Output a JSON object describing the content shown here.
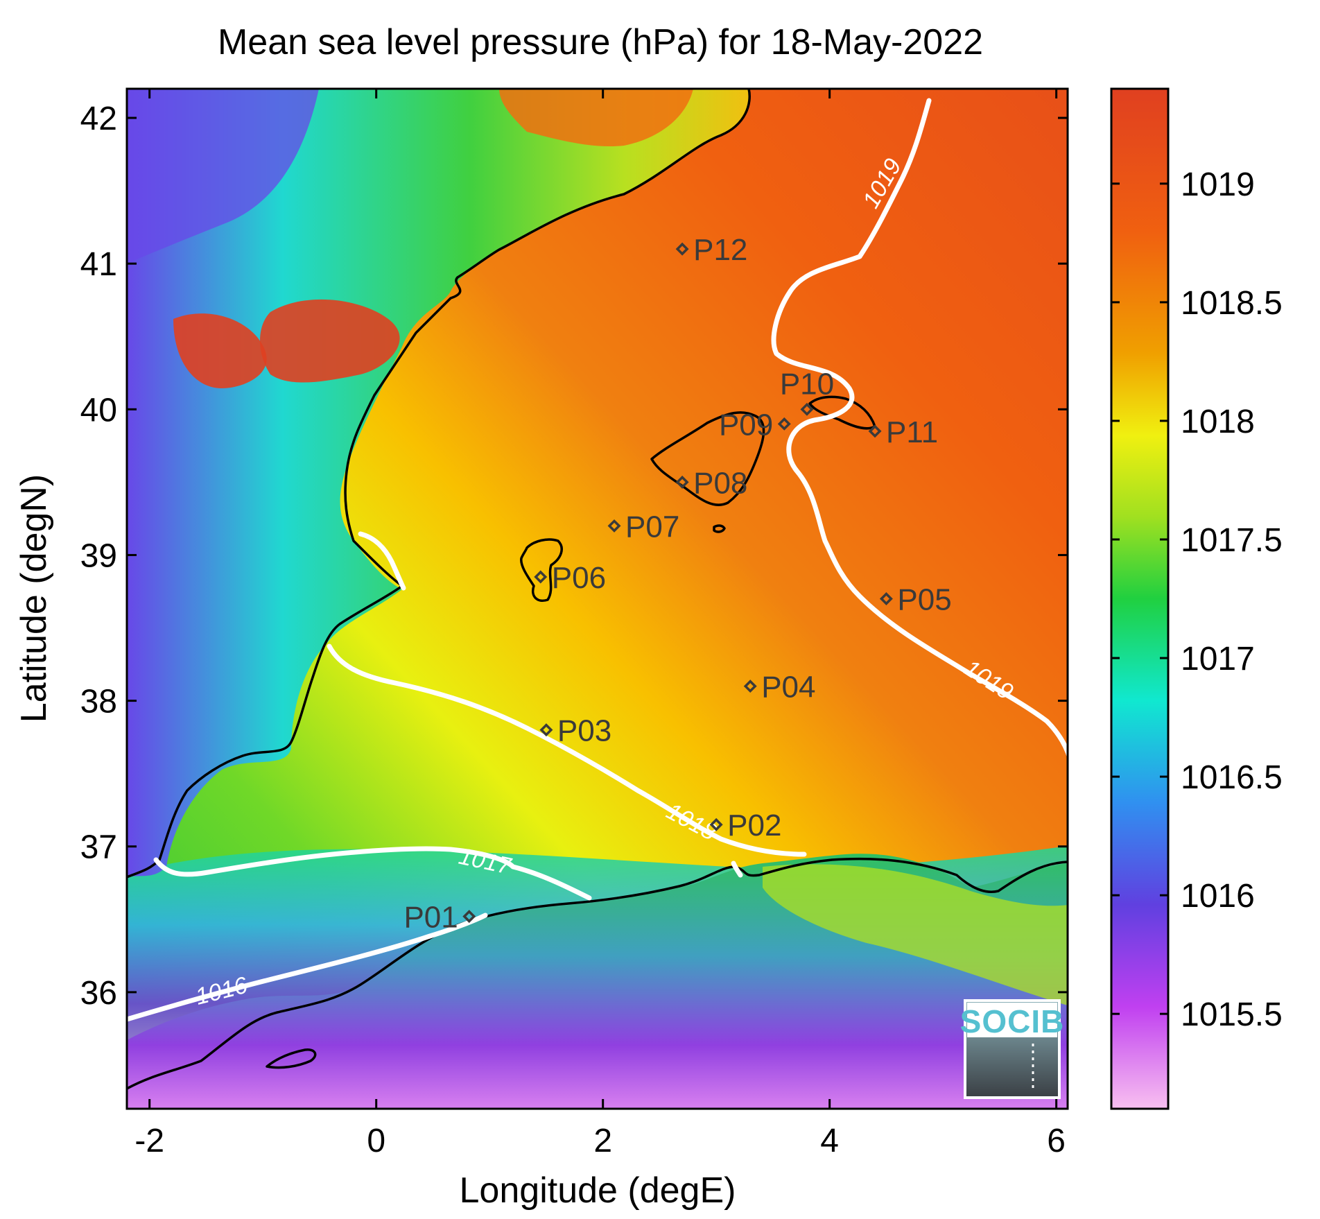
{
  "title": "Mean sea level pressure (hPa) for 18-May-2022",
  "xlabel": "Longitude (degE)",
  "ylabel": "Latitude (degN)",
  "x_ticks": [
    "-2",
    "0",
    "2",
    "4",
    "6"
  ],
  "y_ticks": [
    "36",
    "37",
    "38",
    "39",
    "40",
    "41",
    "42"
  ],
  "colorbar": {
    "ticks": [
      "1015.5",
      "1016",
      "1016.5",
      "1017",
      "1017.5",
      "1018",
      "1018.5",
      "1019"
    ],
    "colors": [
      "#f8c0f0",
      "#c040f0",
      "#6040e0",
      "#3090f0",
      "#10e8d0",
      "#20d040",
      "#a0e020",
      "#f0f010",
      "#f0a000",
      "#f06010",
      "#e04020"
    ]
  },
  "contour_labels": [
    "1016",
    "1017",
    "1018",
    "1019",
    "1019"
  ],
  "stations": [
    {
      "id": "P01",
      "lon": 0.82,
      "lat": 36.52
    },
    {
      "id": "P02",
      "lon": 3.0,
      "lat": 37.15
    },
    {
      "id": "P03",
      "lon": 1.5,
      "lat": 37.8
    },
    {
      "id": "P04",
      "lon": 3.3,
      "lat": 38.1
    },
    {
      "id": "P05",
      "lon": 4.5,
      "lat": 38.7
    },
    {
      "id": "P06",
      "lon": 1.45,
      "lat": 38.85
    },
    {
      "id": "P07",
      "lon": 2.1,
      "lat": 39.2
    },
    {
      "id": "P08",
      "lon": 2.7,
      "lat": 39.5
    },
    {
      "id": "P09",
      "lon": 3.6,
      "lat": 39.9
    },
    {
      "id": "P10",
      "lon": 3.8,
      "lat": 40.0
    },
    {
      "id": "P11",
      "lon": 4.4,
      "lat": 39.85
    },
    {
      "id": "P12",
      "lon": 2.7,
      "lat": 41.1
    }
  ],
  "logo": {
    "text": "SOCIB"
  },
  "chart_data": {
    "type": "heatmap",
    "title": "Mean sea level pressure (hPa) for 18-May-2022",
    "xlabel": "Longitude (degE)",
    "ylabel": "Latitude (degN)",
    "xlim": [
      -2.2,
      6.1
    ],
    "ylim": [
      35.2,
      42.2
    ],
    "colorbar_range": [
      1015.1,
      1019.4
    ],
    "contour_levels": [
      1016,
      1017,
      1018,
      1019
    ]
  }
}
